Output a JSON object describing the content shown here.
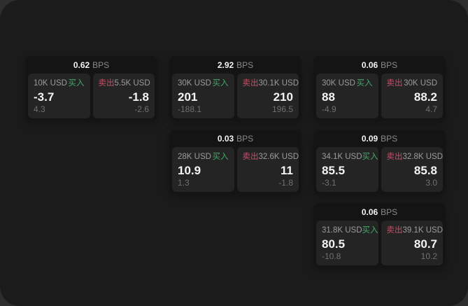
{
  "labels": {
    "bps": "BPS",
    "buy": "买入",
    "sell": "卖出"
  },
  "colors": {
    "buy": "#44a868",
    "sell": "#c94f68",
    "surface": "#1b1b1b",
    "card": "#141414",
    "panel": "#242424"
  },
  "cards": [
    {
      "bps": "0.62",
      "buy": {
        "size": "10K USD",
        "price": "-3.7",
        "delta": "4.3"
      },
      "sell": {
        "size": "5.5K USD",
        "price": "-1.8",
        "delta": "-2.6"
      }
    },
    {
      "bps": "2.92",
      "buy": {
        "size": "30K USD",
        "price": "201",
        "delta": "-188.1"
      },
      "sell": {
        "size": "30.1K USD",
        "price": "210",
        "delta": "196.5"
      }
    },
    {
      "bps": "0.06",
      "buy": {
        "size": "30K USD",
        "price": "88",
        "delta": "-4.9"
      },
      "sell": {
        "size": "30K USD",
        "price": "88.2",
        "delta": "4.7"
      }
    },
    {
      "bps": "0.03",
      "buy": {
        "size": "28K USD",
        "price": "10.9",
        "delta": "1.3"
      },
      "sell": {
        "size": "32.6K USD",
        "price": "11",
        "delta": "-1.8"
      }
    },
    {
      "bps": "0.09",
      "buy": {
        "size": "34.1K USD",
        "price": "85.5",
        "delta": "-3.1"
      },
      "sell": {
        "size": "32.8K USD",
        "price": "85.8",
        "delta": "3.0"
      }
    },
    {
      "bps": "0.06",
      "buy": {
        "size": "31.8K USD",
        "price": "80.5",
        "delta": "-10.8"
      },
      "sell": {
        "size": "39.1K USD",
        "price": "80.7",
        "delta": "10.2"
      }
    }
  ]
}
